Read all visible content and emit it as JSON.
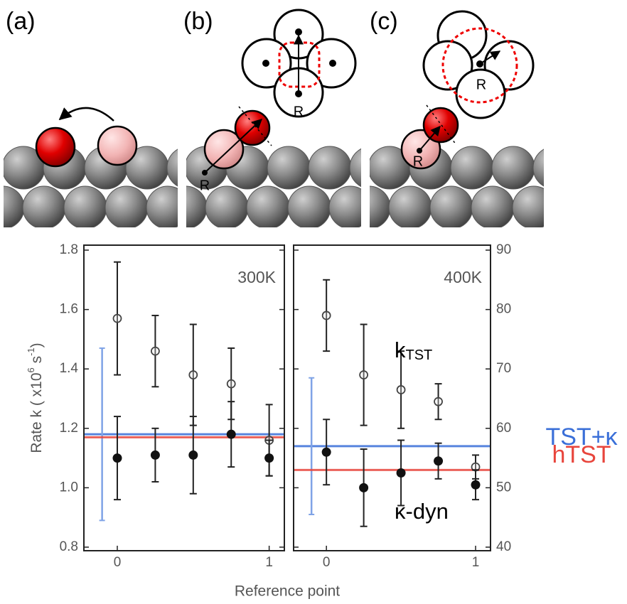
{
  "panels": [
    {
      "label": "(a)"
    },
    {
      "label": "(b)",
      "markers": [
        "R",
        "R"
      ]
    },
    {
      "label": "(c)",
      "markers": [
        "R",
        "R"
      ]
    }
  ],
  "chart_data": [
    {
      "type": "errorbar",
      "title": "300K",
      "ylabel": [
        "Rate k ( x10",
        "6",
        " s",
        "-1",
        ")"
      ],
      "xlabel": "Reference point",
      "xlim": [
        -0.22,
        1.1
      ],
      "xticks": [
        0,
        1
      ],
      "ylim": [
        0.8,
        1.8
      ],
      "yticks": [
        0.8,
        {
          "value": 1,
          "label": "1.0"
        },
        1.2,
        1.4,
        1.6,
        1.8
      ],
      "series": [
        {
          "marker": "open",
          "color": "#444444",
          "x": [
            0,
            0.25,
            0.5,
            0.75,
            1
          ],
          "values": [
            1.57,
            1.46,
            1.38,
            1.35,
            1.16
          ],
          "errors": [
            0.19,
            0.12,
            0.17,
            0.12,
            0.12
          ]
        },
        {
          "marker": "filled",
          "color": "#111111",
          "x": [
            0,
            0.25,
            0.5,
            0.75,
            1
          ],
          "values": [
            1.1,
            1.11,
            1.11,
            1.18,
            1.1
          ],
          "errors": [
            0.14,
            0.09,
            0.13,
            0.11,
            0.06
          ]
        }
      ],
      "reference_lines": [
        {
          "value": 1.18,
          "color": "#3a6fd8",
          "x": -0.1,
          "error": 0.29
        },
        {
          "value": 1.17,
          "color": "#e8453c"
        }
      ]
    },
    {
      "type": "errorbar",
      "title": "400K",
      "xlim": [
        -0.22,
        1.1
      ],
      "xticks": [
        0,
        1
      ],
      "y2lim": [
        40,
        90
      ],
      "y2ticks": [
        40,
        50,
        60,
        70,
        80,
        90
      ],
      "series": [
        {
          "name": "k",
          "name_sub": "TST",
          "axis": "y2",
          "marker": "open",
          "color": "#444444",
          "x": [
            0,
            0.25,
            0.5,
            0.75,
            1
          ],
          "values": [
            79,
            69,
            66.5,
            64.5,
            53.5
          ],
          "errors": [
            6,
            8.5,
            6.5,
            3,
            2
          ]
        },
        {
          "name": "κ-dyn",
          "axis": "y2",
          "marker": "filled",
          "color": "#111111",
          "x": [
            0,
            0.25,
            0.5,
            0.75,
            1
          ],
          "values": [
            56,
            50,
            52.5,
            54.5,
            50.5
          ],
          "errors": [
            5.5,
            6.5,
            5.5,
            3,
            2.5
          ]
        }
      ],
      "reference_lines": [
        {
          "name": "TST+κ",
          "axis": "y2",
          "value": 57,
          "color": "#3a6fd8",
          "x": -0.1,
          "error": 11.5
        },
        {
          "name": "hTST",
          "axis": "y2",
          "value": 53,
          "color": "#e8453c"
        }
      ]
    }
  ]
}
